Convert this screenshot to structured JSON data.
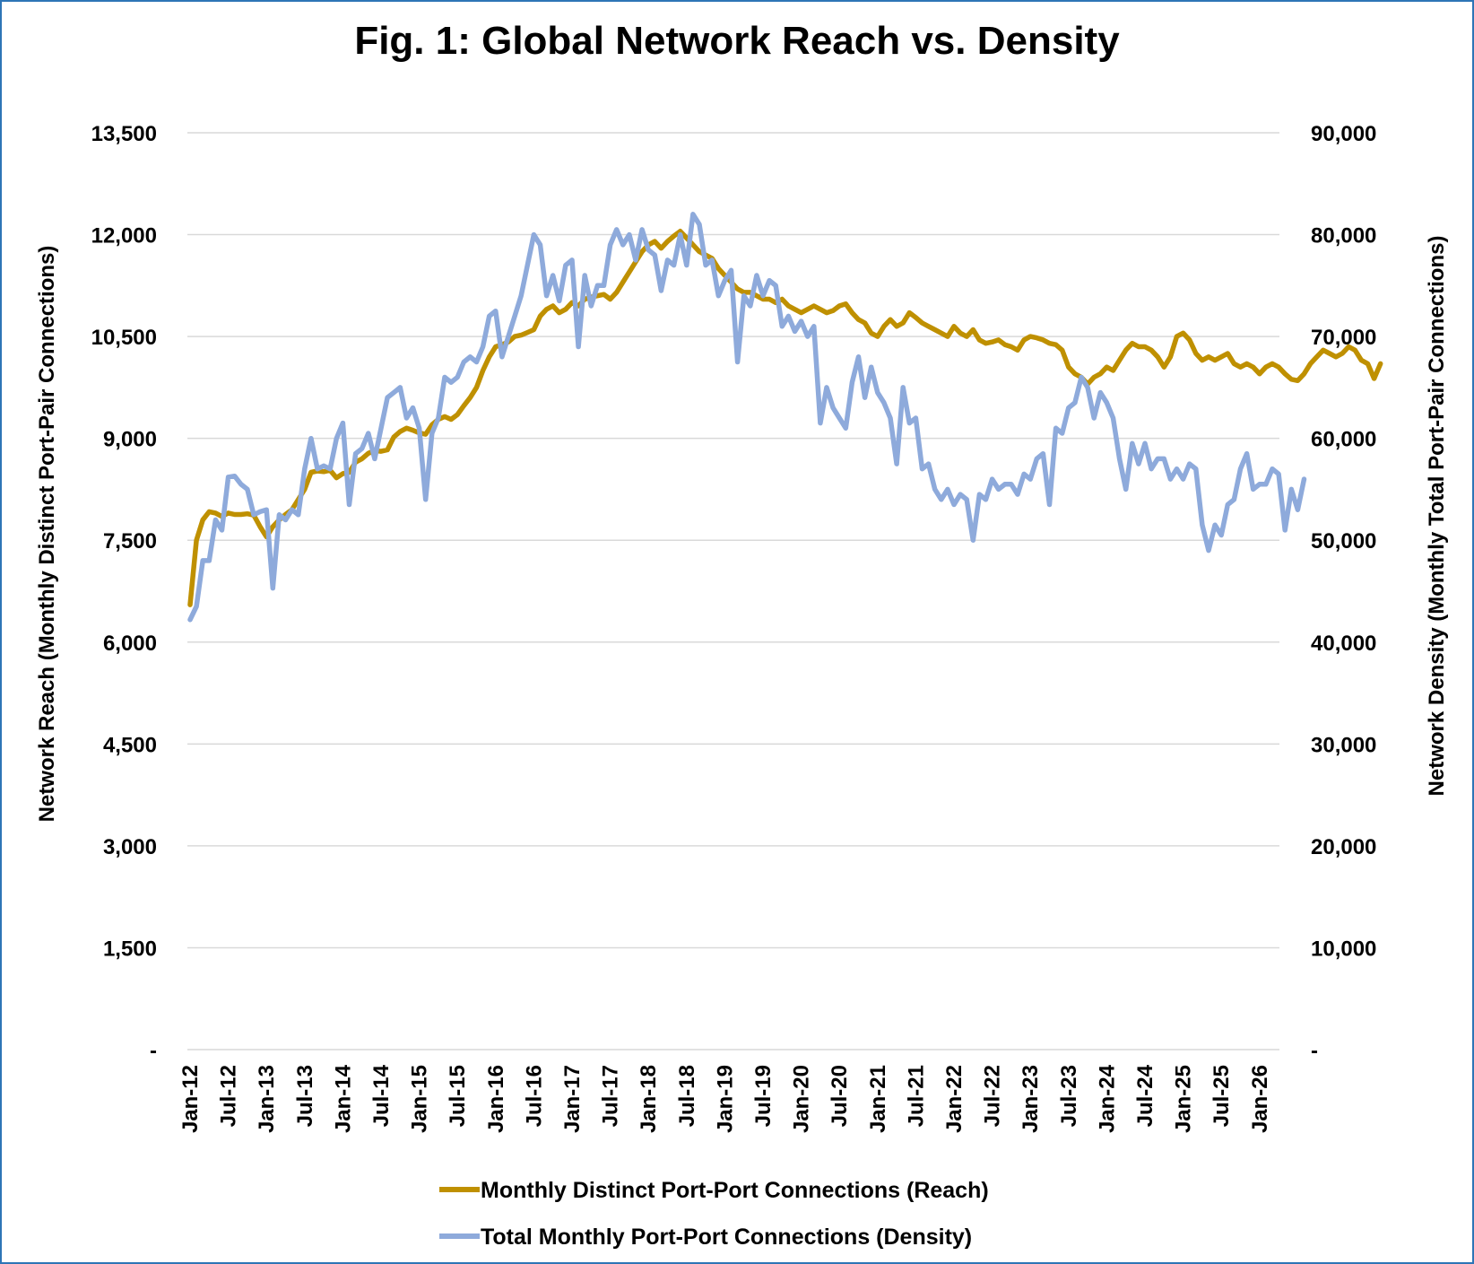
{
  "chart_data": {
    "type": "line",
    "title": "Fig. 1: Global Network Reach vs. Density",
    "y_left_label": "Network Reach (Monthly Distinct Port-Pair Connections)",
    "y_right_label": "Network Density (Monthly Total Port-Pair Connections)",
    "y_left_ticks": [
      "-",
      "1,500",
      "3,000",
      "4,500",
      "6,000",
      "7,500",
      "9,000",
      "10,500",
      "12,000",
      "13,500"
    ],
    "y_right_ticks": [
      "-",
      "10,000",
      "20,000",
      "30,000",
      "40,000",
      "50,000",
      "60,000",
      "70,000",
      "80,000",
      "90,000"
    ],
    "y_left_range": [
      0,
      13500
    ],
    "y_right_range": [
      0,
      90000
    ],
    "x_tick_labels": [
      "Jan-12",
      "Jul-12",
      "Jan-13",
      "Jul-13",
      "Jan-14",
      "Jul-14",
      "Jan-15",
      "Jul-15",
      "Jan-16",
      "Jul-16",
      "Jan-17",
      "Jul-17",
      "Jan-18",
      "Jul-18",
      "Jan-19",
      "Jul-19",
      "Jan-20",
      "Jul-20",
      "Jan-21",
      "Jul-21",
      "Jan-22",
      "Jul-22",
      "Jan-23",
      "Jul-23",
      "Jan-24",
      "Jul-24",
      "Jan-25",
      "Jul-25",
      "Jan-26"
    ],
    "x_start": "Jan-12",
    "x_interval": "monthly",
    "grid": true,
    "legend_position": "bottom",
    "series": [
      {
        "name": "Monthly Distinct Port-Port Connections (Reach)",
        "axis": "left",
        "color": "#bf9000",
        "values": [
          6550,
          7500,
          7800,
          7920,
          7900,
          7850,
          7900,
          7880,
          7880,
          7890,
          7870,
          7700,
          7550,
          7700,
          7800,
          7880,
          7950,
          8100,
          8250,
          8500,
          8520,
          8510,
          8530,
          8420,
          8480,
          8500,
          8650,
          8700,
          8780,
          8820,
          8810,
          8830,
          9020,
          9100,
          9150,
          9120,
          9080,
          9060,
          9200,
          9280,
          9320,
          9280,
          9350,
          9480,
          9600,
          9750,
          10000,
          10200,
          10350,
          10380,
          10420,
          10500,
          10520,
          10560,
          10600,
          10800,
          10900,
          10950,
          10850,
          10900,
          11000,
          10950,
          11050,
          11080,
          11100,
          11120,
          11050,
          11150,
          11300,
          11450,
          11600,
          11750,
          11850,
          11900,
          11800,
          11900,
          11980,
          12050,
          11950,
          11850,
          11750,
          11700,
          11650,
          11500,
          11400,
          11300,
          11200,
          11150,
          11150,
          11100,
          11050,
          11050,
          11000,
          11050,
          10950,
          10900,
          10850,
          10900,
          10950,
          10900,
          10850,
          10880,
          10950,
          10980,
          10850,
          10750,
          10700,
          10550,
          10500,
          10650,
          10750,
          10650,
          10700,
          10850,
          10780,
          10700,
          10650,
          10600,
          10550,
          10500,
          10650,
          10550,
          10500,
          10600,
          10450,
          10400,
          10420,
          10450,
          10380,
          10350,
          10300,
          10450,
          10500,
          10480,
          10450,
          10400,
          10380,
          10300,
          10050,
          9950,
          9900,
          9800,
          9900,
          9950,
          10050,
          10000,
          10150,
          10300,
          10400,
          10350,
          10350,
          10300,
          10200,
          10050,
          10200,
          10500,
          10550,
          10450,
          10250,
          10150,
          10200,
          10150,
          10200,
          10250,
          10100,
          10050,
          10100,
          10050,
          9950,
          10050,
          10100,
          10050,
          9950,
          9870,
          9850,
          9950,
          10100,
          10200,
          10300,
          10250,
          10200,
          10250,
          10350,
          10300,
          10150,
          10100,
          9880,
          10100
        ]
      },
      {
        "name": "Total Monthly Port-Port Connections (Density)",
        "axis": "right",
        "color": "#8eaadb",
        "values": [
          42200,
          43500,
          48000,
          48000,
          52000,
          51000,
          56200,
          56300,
          55500,
          55000,
          52500,
          52800,
          53000,
          45300,
          52500,
          52000,
          53000,
          52500,
          57000,
          60000,
          57000,
          57300,
          57000,
          60000,
          61500,
          53500,
          58500,
          59000,
          60500,
          58000,
          61000,
          64000,
          64500,
          65000,
          62000,
          63000,
          61000,
          54000,
          60500,
          62000,
          66000,
          65500,
          66000,
          67500,
          68000,
          67500,
          69000,
          72000,
          72500,
          68000,
          70000,
          72000,
          74000,
          77000,
          80000,
          79000,
          74000,
          76000,
          73500,
          77000,
          77500,
          69000,
          76000,
          73000,
          75000,
          75000,
          79000,
          80500,
          79000,
          80000,
          77500,
          80500,
          78500,
          78000,
          74500,
          77500,
          77000,
          80000,
          77000,
          82000,
          81000,
          77000,
          77500,
          74000,
          75500,
          76500,
          67500,
          74000,
          73000,
          76000,
          74000,
          75500,
          75000,
          71000,
          72000,
          70500,
          71500,
          70000,
          71000,
          61500,
          65000,
          63000,
          62000,
          61000,
          65500,
          68000,
          64000,
          67000,
          64500,
          63500,
          62000,
          57500,
          65000,
          61500,
          62000,
          57000,
          57500,
          55000,
          54000,
          55000,
          53500,
          54500,
          54000,
          50000,
          54500,
          54000,
          56000,
          55000,
          55500,
          55500,
          54500,
          56500,
          56000,
          58000,
          58500,
          53500,
          61000,
          60500,
          63000,
          63500,
          66000,
          65000,
          62000,
          64500,
          63500,
          62000,
          58000,
          55000,
          59500,
          57500,
          59500,
          57000,
          58000,
          58000,
          56000,
          57000,
          56000,
          57500,
          57000,
          51500,
          49000,
          51500,
          50500,
          53500,
          54000,
          57000,
          58500,
          55000,
          55500,
          55500,
          57000,
          56500,
          51000,
          55000,
          53000,
          56000
        ]
      }
    ]
  }
}
